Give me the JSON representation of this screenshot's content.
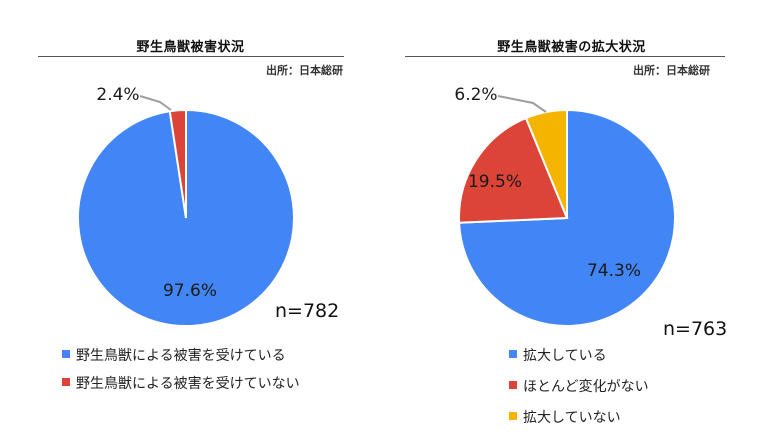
{
  "colors": {
    "blue": "#4285f4",
    "red": "#db4437",
    "yellow": "#f4b400"
  },
  "chart_data": [
    {
      "type": "pie",
      "title": "野生鳥獣被害状況",
      "source": "出所：日本総研",
      "n_label": "n=782",
      "slices": [
        {
          "name": "野生鳥獣による被害を受けている",
          "value": 97.6,
          "label": "97.6%",
          "color": "#4285f4"
        },
        {
          "name": "野生鳥獣による被害を受けていない",
          "value": 2.4,
          "label": "2.4%",
          "color": "#db4437"
        }
      ],
      "legend": [
        {
          "label": "野生鳥獣による被害を受けている",
          "color": "#4285f4"
        },
        {
          "label": "野生鳥獣による被害を受けていない",
          "color": "#db4437"
        }
      ]
    },
    {
      "type": "pie",
      "title": "野生鳥獣被害の拡大状況",
      "source": "出所：日本総研",
      "n_label": "n=763",
      "slices": [
        {
          "name": "拡大している",
          "value": 74.3,
          "label": "74.3%",
          "color": "#4285f4"
        },
        {
          "name": "ほとんど変化がない",
          "value": 19.5,
          "label": "19.5%",
          "color": "#db4437"
        },
        {
          "name": "拡大していない",
          "value": 6.2,
          "label": "6.2%",
          "color": "#f4b400"
        }
      ],
      "legend": [
        {
          "label": "拡大している",
          "color": "#4285f4"
        },
        {
          "label": "ほとんど変化がない",
          "color": "#db4437"
        },
        {
          "label": "拡大していない",
          "color": "#f4b400"
        }
      ]
    }
  ]
}
